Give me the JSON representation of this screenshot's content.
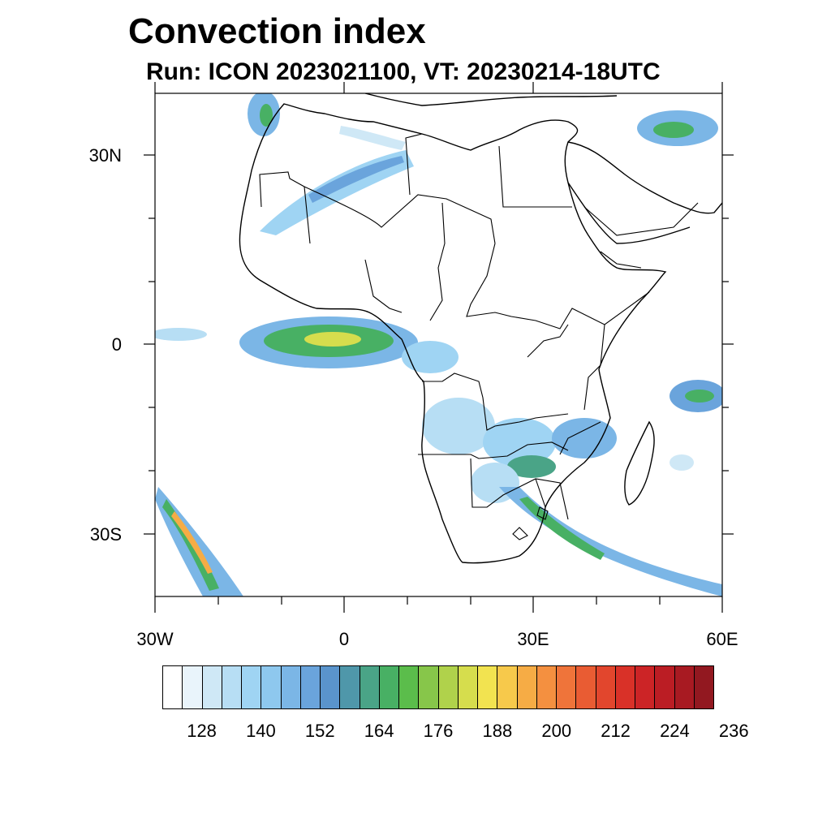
{
  "title": "Convection index",
  "subtitle": "Run: ICON 2023021100,  VT: 20230214-18UTC",
  "map": {
    "lat_labels": [
      "30N",
      "0",
      "30S"
    ],
    "lon_labels": [
      "30W",
      "0",
      "30E",
      "60E"
    ],
    "extent": {
      "lon_min": -30,
      "lon_max": 60,
      "lat_min": -40,
      "lat_max": 40
    }
  },
  "colorbar": {
    "colors": [
      "#ffffff",
      "#e9f4fb",
      "#cfe8f6",
      "#b7def4",
      "#9fd4f3",
      "#8ec8ee",
      "#7bb6e6",
      "#6aa4dc",
      "#5a94cc",
      "#4f97aa",
      "#4aa487",
      "#48b064",
      "#5bbd4b",
      "#87c64a",
      "#b0d24b",
      "#d6dd4d",
      "#f2e350",
      "#f7c94b",
      "#f6ac45",
      "#f49040",
      "#ef743a",
      "#e95c33",
      "#e2462d",
      "#d93128",
      "#cc2426",
      "#bb1d24",
      "#a81a22",
      "#921820"
    ],
    "labels": [
      "128",
      "140",
      "152",
      "164",
      "176",
      "188",
      "200",
      "212",
      "224",
      "236"
    ]
  }
}
